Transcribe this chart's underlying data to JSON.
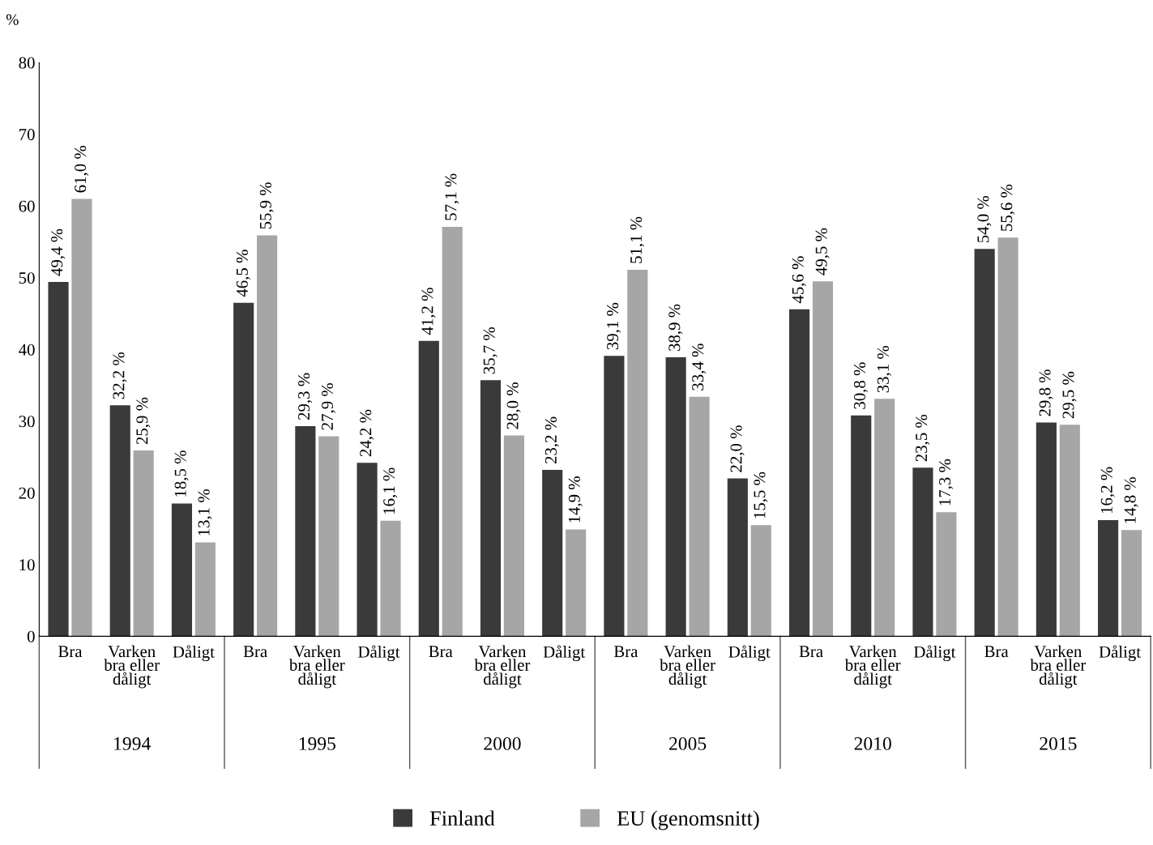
{
  "chart_data": {
    "type": "bar",
    "ylabel": "%",
    "categories": [
      "Bra",
      "Varken\nbra eller\ndåligt",
      "Dåligt",
      "Bra",
      "Varken\nbra eller\ndåligt",
      "Dåligt",
      "Bra",
      "Varken\nbra eller\ndåligt",
      "Dåligt",
      "Bra",
      "Varken\nbra eller\ndåligt",
      "Dåligt",
      "Bra",
      "Varken\nbra eller\ndåligt",
      "Dåligt",
      "Bra",
      "Varken\nbra eller\ndåligt",
      "Dåligt"
    ],
    "annotations": [
      "1994",
      "1995",
      "2000",
      "2005",
      "2010",
      "2015"
    ],
    "series": [
      {
        "name": "Finland",
        "color": "#3a3a3a",
        "values": [
          49.4,
          32.2,
          18.5,
          46.5,
          29.3,
          24.2,
          41.2,
          35.7,
          23.2,
          39.1,
          38.9,
          22.0,
          45.6,
          30.8,
          23.5,
          54.0,
          29.8,
          16.2
        ],
        "value_labels": [
          "49,4 %",
          "32,2 %",
          "18,5 %",
          "46,5 %",
          "29,3 %",
          "24,2 %",
          "41,2 %",
          "35,7 %",
          "23,2 %",
          "39,1 %",
          "38,9 %",
          "22,0 %",
          "45,6 %",
          "30,8 %",
          "23,5 %",
          "54,0 %",
          "29,8 %",
          "16,2 %"
        ]
      },
      {
        "name": "EU (genomsnitt)",
        "color": "#a6a6a6",
        "values": [
          61.0,
          25.9,
          13.1,
          55.9,
          27.9,
          16.1,
          57.1,
          28.0,
          14.9,
          51.1,
          33.4,
          15.5,
          49.5,
          33.1,
          17.3,
          55.6,
          29.5,
          14.8
        ],
        "value_labels": [
          "61,0 %",
          "25,9 %",
          "13,1 %",
          "55,9 %",
          "27,9 %",
          "16,1 %",
          "57,1 %",
          "28,0 %",
          "14,9 %",
          "51,1 %",
          "33,4 %",
          "15,5 %",
          "49,5 %",
          "33,1 %",
          "17,3 %",
          "55,6 %",
          "29,5 %",
          "14,8 %"
        ]
      }
    ],
    "ylim": [
      0,
      80
    ],
    "yticks": [
      0,
      10,
      20,
      30,
      40,
      50,
      60,
      70,
      80
    ],
    "grid": false,
    "legend": "bottom"
  }
}
